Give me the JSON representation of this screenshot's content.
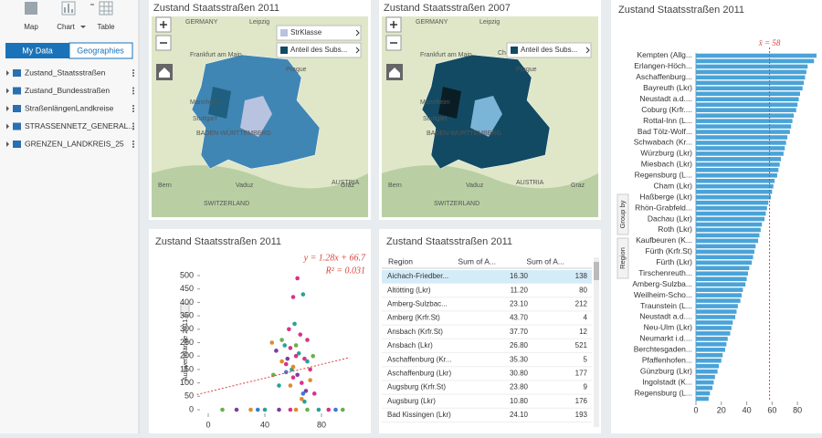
{
  "toolbar": {
    "items": [
      "Map",
      "Chart",
      "Table"
    ]
  },
  "sidebar": {
    "tabs": [
      "My Data",
      "Geographies"
    ],
    "datasets": [
      "Zustand_Staatsstraßen",
      "Zustand_Bundesstraßen",
      "StraßenlängenLandkreise",
      "STRASSENNETZ_GENERAL...",
      "GRENZEN_LANDKREIS_25"
    ]
  },
  "maps": [
    {
      "title": "Zustand Staatsstraßen 2011",
      "legend": [
        "StrKlasse",
        "Anteil des Subs..."
      ],
      "labels": [
        "GERMANY",
        "Leipzig",
        "Frankfurt am Main",
        "Mannheim",
        "Stuttgart",
        "BADEN-WÜRTTEMBERG",
        "Prague",
        "AUSTRIA",
        "SWITZERLAND",
        "Vaduz",
        "Bern",
        "Graz"
      ]
    },
    {
      "title": "Zustand Staatsstraßen 2007",
      "legend": [
        "Anteil des Subs..."
      ],
      "labels": [
        "GERMANY",
        "Leipzig",
        "Chemnitz",
        "Frankfurt am Main",
        "Mannheim",
        "Stuttgart",
        "BADEN-WÜRTTEMBERG",
        "Prague",
        "AUSTRIA",
        "SWITZERLAND",
        "Vaduz",
        "Bern",
        "Graz"
      ]
    }
  ],
  "table": {
    "title": "Zustand Staatsstraßen 2011",
    "columns": [
      "Region",
      "Sum of A...",
      "Sum of A..."
    ],
    "rows": [
      [
        "Aichach-Friedber...",
        "16.30",
        "138"
      ],
      [
        "Altötting (Lkr)",
        "11.20",
        "80"
      ],
      [
        "Amberg-Sulzbac...",
        "23.10",
        "212"
      ],
      [
        "Amberg (Krfr.St)",
        "43.70",
        "4"
      ],
      [
        "Ansbach (Krfr.St)",
        "37.70",
        "12"
      ],
      [
        "Ansbach (Lkr)",
        "26.80",
        "521"
      ],
      [
        "Aschaffenburg (Kr...",
        "35.30",
        "5"
      ],
      [
        "Aschaffenburg (Lkr)",
        "30.80",
        "177"
      ],
      [
        "Augsburg (Krfr.St)",
        "23.80",
        "9"
      ],
      [
        "Augsburg (Lkr)",
        "10.80",
        "176"
      ],
      [
        "Bad Kissingen (Lkr)",
        "24.10",
        "193"
      ]
    ]
  },
  "chart_data": [
    {
      "type": "scatter",
      "title": "Zustand Staatsstraßen 2011",
      "y_label": "Auswertelänge 2011 (km)",
      "xlim": [
        0,
        100
      ],
      "ylim": [
        0,
        500
      ],
      "xticks": [
        0,
        40,
        80
      ],
      "yticks": [
        0,
        50,
        100,
        150,
        200,
        250,
        300,
        350,
        400,
        450,
        500
      ],
      "trendline": {
        "slope": 1.28,
        "intercept": 66.7
      },
      "annotations": [
        "y = 1.28x + 66.7",
        "R² = 0.031"
      ],
      "series": [
        {
          "color": "#d6338a",
          "x": [
            63,
            60,
            57,
            65,
            70,
            58,
            62,
            68,
            55,
            72,
            60,
            66,
            75,
            58,
            85
          ],
          "values": [
            490,
            420,
            300,
            280,
            260,
            230,
            200,
            190,
            170,
            150,
            120,
            100,
            60,
            0,
            0
          ]
        },
        {
          "color": "#2aa198",
          "x": [
            67,
            61,
            54,
            64,
            70,
            59,
            50,
            68,
            40,
            78
          ],
          "values": [
            430,
            320,
            240,
            210,
            180,
            150,
            90,
            30,
            0,
            0
          ]
        },
        {
          "color": "#e08a2c",
          "x": [
            45,
            52,
            60,
            58,
            72,
            66,
            30,
            62
          ],
          "values": [
            250,
            180,
            160,
            90,
            110,
            40,
            0,
            0
          ]
        },
        {
          "color": "#7a3fa0",
          "x": [
            48,
            56,
            63,
            69,
            20,
            50
          ],
          "values": [
            220,
            190,
            130,
            70,
            0,
            0
          ]
        },
        {
          "color": "#6ab04c",
          "x": [
            52,
            62,
            74,
            46,
            10,
            70,
            95
          ],
          "values": [
            260,
            240,
            200,
            130,
            0,
            0,
            0
          ]
        },
        {
          "color": "#3a7bd5",
          "x": [
            55,
            67,
            35,
            90
          ],
          "values": [
            140,
            60,
            0,
            0
          ]
        }
      ]
    },
    {
      "type": "hbar",
      "title": "Zustand Staatsstraßen 2011",
      "color": "#4aa3d8",
      "xlim": [
        0,
        95
      ],
      "xticks": [
        0,
        20,
        40,
        60,
        80
      ],
      "mean": {
        "value": 58,
        "label": "x̄ = 58"
      },
      "side_tabs": [
        "Group by",
        "Region"
      ],
      "categories": [
        "Kempten (Allg...",
        null,
        "Erlangen-Höch...",
        null,
        "Aschaffenburg...",
        null,
        "Bayreuth (Lkr)",
        null,
        "Neustadt a.d....",
        null,
        "Coburg (Krfr....",
        null,
        "Rottal-Inn (L...",
        null,
        "Bad Tölz-Wolf...",
        null,
        "Schwabach (Kr...",
        null,
        "Würzburg (Lkr)",
        null,
        "Miesbach (Lkr)",
        null,
        "Regensburg (L...",
        null,
        "Cham (Lkr)",
        null,
        "Haßberge (Lkr)",
        null,
        "Rhön-Grabfeld...",
        null,
        "Dachau (Lkr)",
        null,
        "Roth (Lkr)",
        null,
        "Kaufbeuren (K...",
        null,
        "Fürth (Krfr.St)",
        null,
        "Fürth (Lkr)",
        null,
        "Tirschenreuth...",
        null,
        "Amberg-Sulzba...",
        null,
        "Weilheim-Scho...",
        null,
        "Traunstein (L...",
        null,
        "Neustadt a.d....",
        null,
        "Neu-Ulm (Lkr)",
        null,
        "Neumarkt i.d....",
        null,
        "Berchtesgaden...",
        null,
        "Pfaffenhofen...",
        null,
        "Günzburg (Lkr)",
        null,
        "Ingolstadt (K...",
        null,
        "Regensburg (L...",
        null
      ],
      "values": [
        95,
        93,
        88,
        87,
        86,
        85,
        84,
        82,
        81,
        80,
        79,
        77,
        76,
        75,
        74,
        72,
        71,
        70,
        69,
        67,
        66,
        65,
        64,
        62,
        61,
        60,
        59,
        57,
        56,
        55,
        54,
        52,
        51,
        50,
        49,
        47,
        46,
        45,
        44,
        42,
        41,
        40,
        39,
        37,
        36,
        35,
        33,
        32,
        31,
        29,
        28,
        27,
        25,
        24,
        23,
        21,
        20,
        18,
        17,
        15,
        14,
        13,
        11,
        10
      ]
    }
  ]
}
